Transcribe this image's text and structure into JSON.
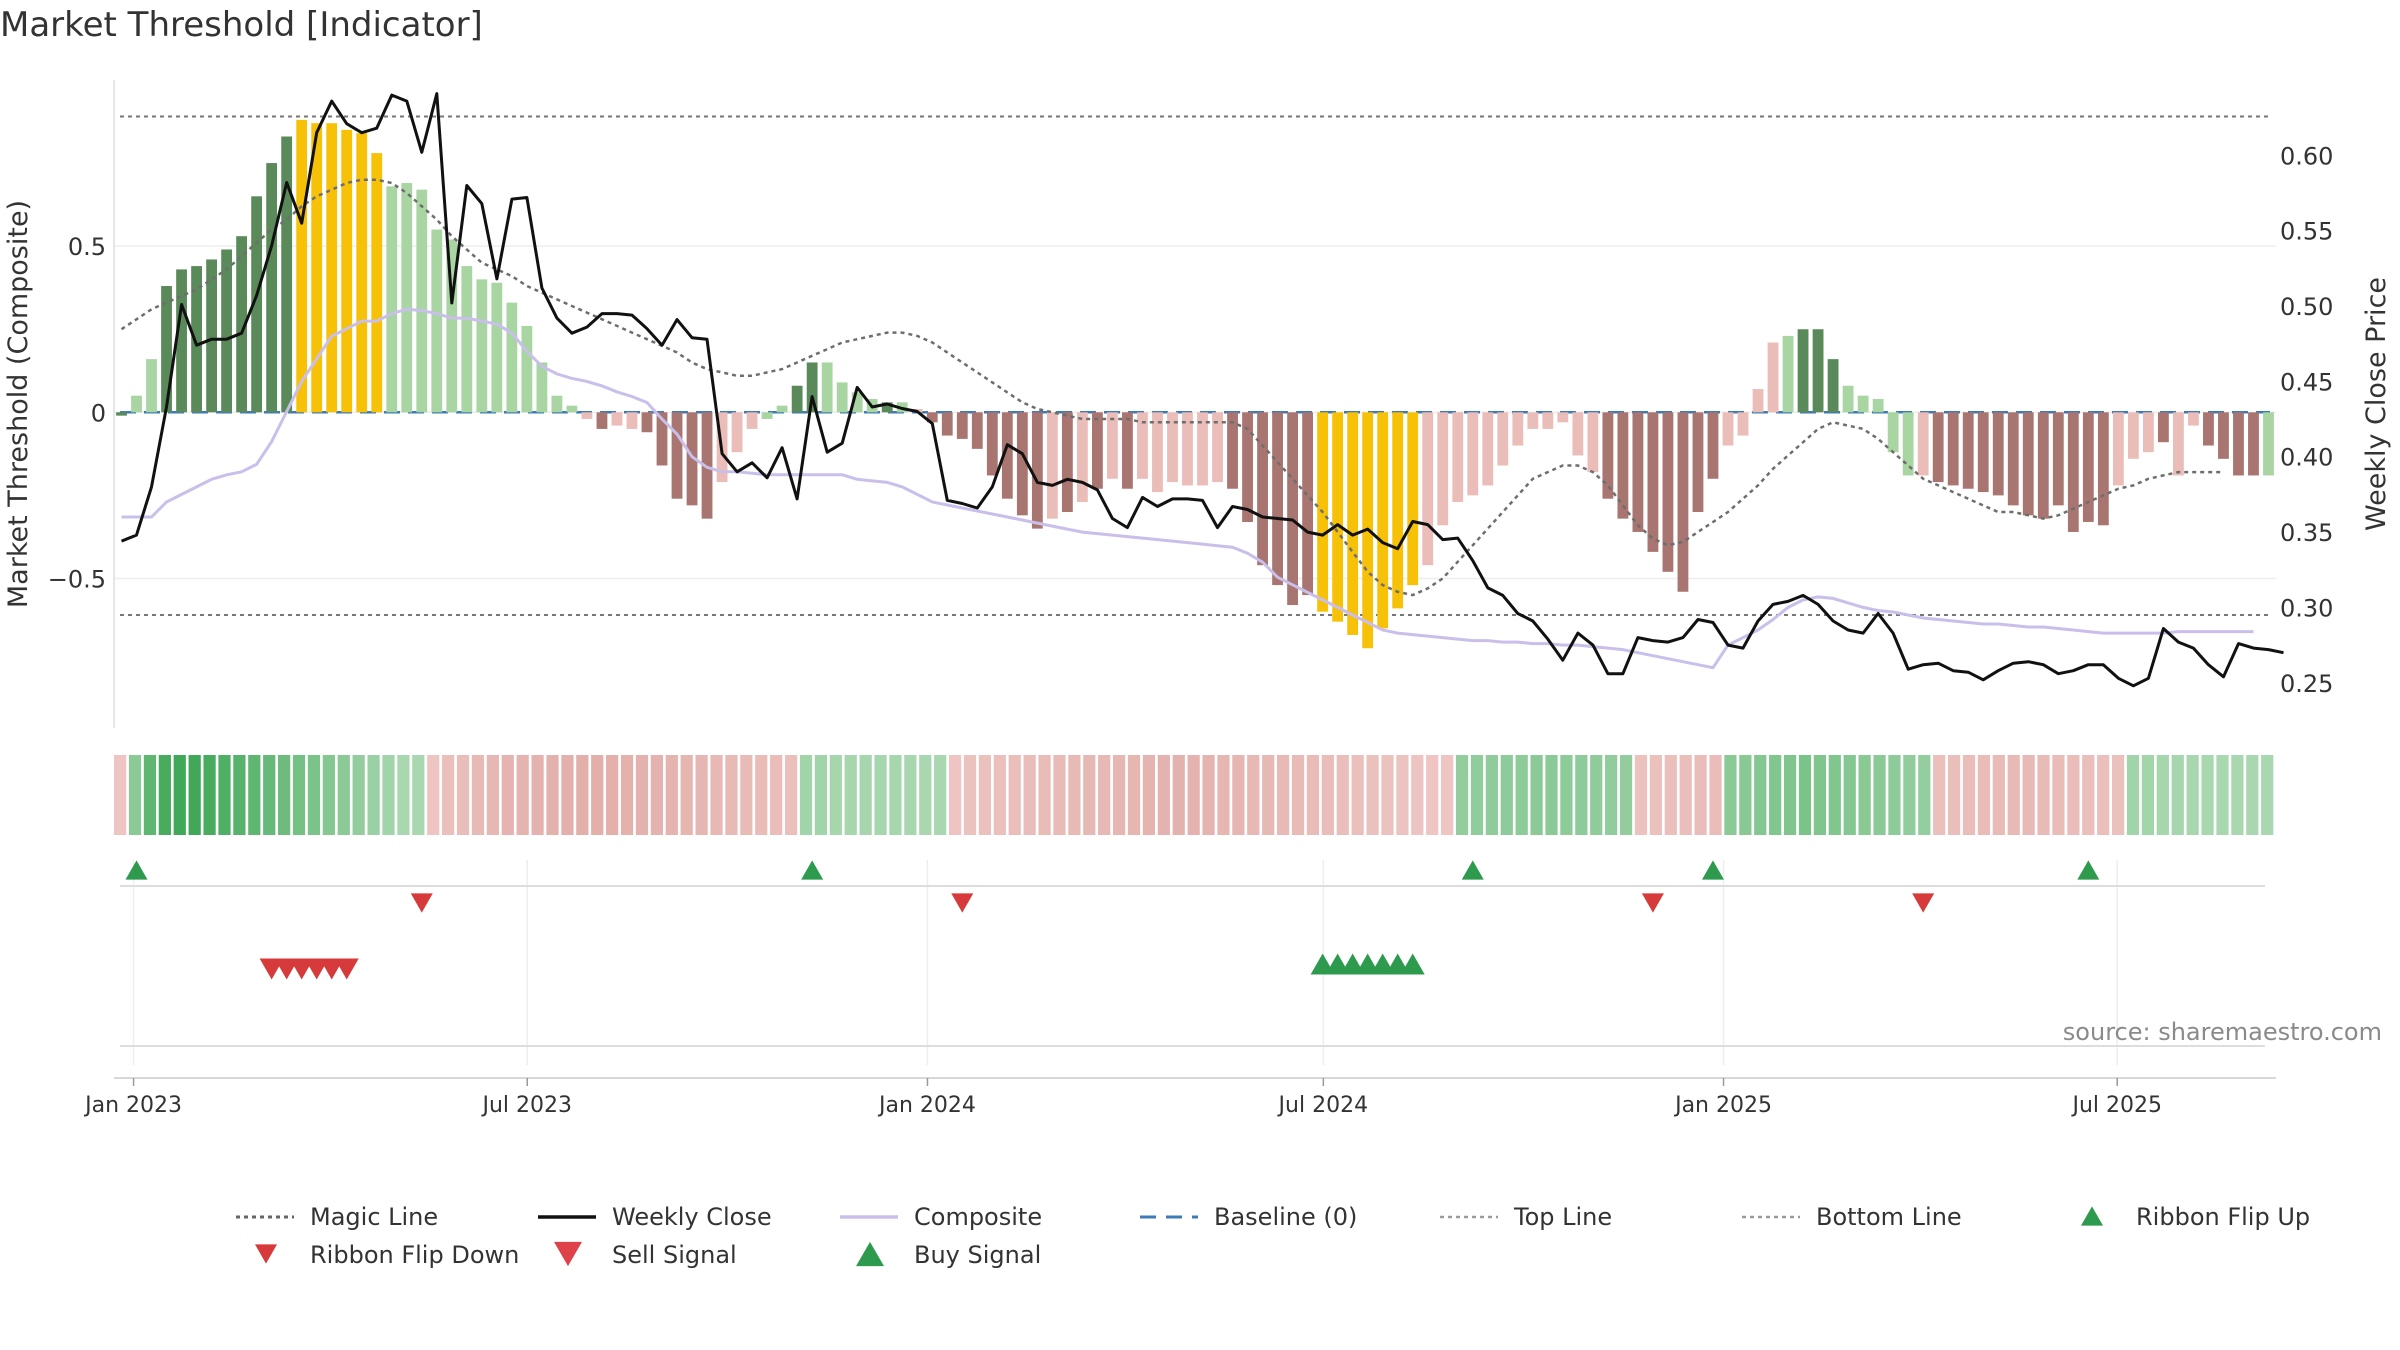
{
  "title": "Market Threshold [Indicator]",
  "source": "source: sharemaestro.com",
  "colors": {
    "green_dark": "#5a8a5a",
    "green_light": "#a8d5a2",
    "red_dark": "#a87570",
    "red_light": "#ebbdb8",
    "yellow": "#f7c108",
    "close": "#111111",
    "composite": "#c9bfea",
    "magic": "#6e6e6e",
    "baseline": "#3e7bb6",
    "buy": "#2e9a4e",
    "sell": "#d63a3a"
  },
  "chart_data": {
    "type": "bar",
    "title": "Market Threshold [Indicator]",
    "ylabel": "Market Threshold (Composite)",
    "y2label": "Weekly Close Price",
    "ylim": [
      -0.95,
      1.0
    ],
    "y2lim": [
      0.22,
      0.65
    ],
    "x_start": "2022-12-23",
    "x_end": "2025-09-12",
    "x_ticks": [
      "Jan 2023",
      "Jul 2023",
      "Jan 2024",
      "Jul 2024",
      "Jan 2025",
      "Jul 2025"
    ],
    "x_tick_dates": [
      "2023-01-01",
      "2023-07-01",
      "2024-01-01",
      "2024-07-01",
      "2025-01-01",
      "2025-07-01"
    ],
    "y_ticks": [
      "0.5",
      "0",
      "−0.5"
    ],
    "y_tick_values": [
      0.5,
      0,
      -0.5
    ],
    "y2_ticks": [
      "0.60",
      "0.55",
      "0.50",
      "0.45",
      "0.40",
      "0.35",
      "0.30",
      "0.25"
    ],
    "y2_tick_values": [
      0.6,
      0.55,
      0.5,
      0.45,
      0.4,
      0.35,
      0.3,
      0.25
    ],
    "top_line": 0.89,
    "bottom_line": -0.61,
    "composite_bars": [
      -0.01,
      0.05,
      0.16,
      0.38,
      0.43,
      0.44,
      0.46,
      0.49,
      0.53,
      0.65,
      0.75,
      0.83,
      0.88,
      0.87,
      0.87,
      0.85,
      0.84,
      0.78,
      0.68,
      0.69,
      0.67,
      0.55,
      0.52,
      0.44,
      0.4,
      0.39,
      0.33,
      0.26,
      0.15,
      0.05,
      0.02,
      -0.02,
      -0.05,
      -0.04,
      -0.05,
      -0.06,
      -0.16,
      -0.26,
      -0.28,
      -0.32,
      -0.21,
      -0.12,
      -0.05,
      -0.02,
      0.02,
      0.08,
      0.15,
      0.15,
      0.09,
      0.06,
      0.04,
      0.03,
      0.03,
      0.01,
      -0.03,
      -0.07,
      -0.08,
      -0.11,
      -0.19,
      -0.26,
      -0.31,
      -0.35,
      -0.32,
      -0.3,
      -0.27,
      -0.23,
      -0.2,
      -0.23,
      -0.2,
      -0.24,
      -0.21,
      -0.22,
      -0.22,
      -0.21,
      -0.23,
      -0.33,
      -0.46,
      -0.52,
      -0.58,
      -0.55,
      -0.6,
      -0.63,
      -0.67,
      -0.71,
      -0.65,
      -0.59,
      -0.52,
      -0.46,
      -0.34,
      -0.27,
      -0.25,
      -0.22,
      -0.16,
      -0.1,
      -0.05,
      -0.05,
      -0.03,
      -0.13,
      -0.18,
      -0.26,
      -0.32,
      -0.36,
      -0.42,
      -0.48,
      -0.54,
      -0.3,
      -0.2,
      -0.1,
      -0.07,
      0.07,
      0.21,
      0.23,
      0.25,
      0.25,
      0.16,
      0.08,
      0.05,
      0.04,
      -0.12,
      -0.19,
      -0.19,
      -0.21,
      -0.22,
      -0.23,
      -0.24,
      -0.25,
      -0.28,
      -0.31,
      -0.32,
      -0.28,
      -0.36,
      -0.33,
      -0.34,
      -0.22,
      -0.14,
      -0.12,
      -0.09,
      -0.19,
      -0.04,
      -0.1,
      -0.14,
      -0.19,
      -0.19,
      -0.19
    ],
    "weekly_close": [
      0.344,
      0.348,
      0.38,
      0.433,
      0.501,
      0.474,
      0.478,
      0.478,
      0.482,
      0.507,
      0.54,
      0.582,
      0.555,
      0.615,
      0.636,
      0.621,
      0.615,
      0.618,
      0.64,
      0.636,
      0.602,
      0.641,
      0.502,
      0.58,
      0.568,
      0.518,
      0.571,
      0.572,
      0.512,
      0.492,
      0.482,
      0.486,
      0.495,
      0.495,
      0.494,
      0.485,
      0.474,
      0.491,
      0.479,
      0.478,
      0.402,
      0.39,
      0.396,
      0.386,
      0.406,
      0.372,
      0.44,
      0.403,
      0.409,
      0.446,
      0.433,
      0.435,
      0.432,
      0.43,
      0.422,
      0.371,
      0.369,
      0.366,
      0.38,
      0.408,
      0.402,
      0.383,
      0.381,
      0.385,
      0.383,
      0.378,
      0.359,
      0.353,
      0.373,
      0.367,
      0.372,
      0.372,
      0.371,
      0.353,
      0.367,
      0.365,
      0.36,
      0.359,
      0.358,
      0.35,
      0.348,
      0.355,
      0.348,
      0.352,
      0.343,
      0.339,
      0.357,
      0.355,
      0.345,
      0.346,
      0.331,
      0.313,
      0.308,
      0.296,
      0.291,
      0.279,
      0.265,
      0.283,
      0.275,
      0.256,
      0.256,
      0.28,
      0.278,
      0.277,
      0.28,
      0.292,
      0.29,
      0.275,
      0.273,
      0.291,
      0.302,
      0.304,
      0.308,
      0.302,
      0.291,
      0.285,
      0.283,
      0.296,
      0.283,
      0.259,
      0.262,
      0.263,
      0.258,
      0.257,
      0.252,
      0.258,
      0.263,
      0.264,
      0.262,
      0.256,
      0.258,
      0.262,
      0.262,
      0.253,
      0.248,
      0.253,
      0.286,
      0.277,
      0.273,
      0.262,
      0.254,
      0.276,
      0.273,
      0.272,
      0.27
    ],
    "composite_line": [
      0.36,
      0.36,
      0.36,
      0.37,
      0.375,
      0.38,
      0.385,
      0.388,
      0.39,
      0.395,
      0.41,
      0.43,
      0.45,
      0.465,
      0.48,
      0.485,
      0.49,
      0.49,
      0.495,
      0.498,
      0.497,
      0.495,
      0.492,
      0.492,
      0.49,
      0.488,
      0.482,
      0.47,
      0.46,
      0.455,
      0.452,
      0.45,
      0.447,
      0.443,
      0.44,
      0.436,
      0.425,
      0.415,
      0.4,
      0.393,
      0.39,
      0.39,
      0.389,
      0.388,
      0.388,
      0.388,
      0.388,
      0.388,
      0.388,
      0.385,
      0.384,
      0.383,
      0.38,
      0.375,
      0.37,
      0.368,
      0.366,
      0.364,
      0.362,
      0.36,
      0.358,
      0.356,
      0.354,
      0.352,
      0.35,
      0.349,
      0.348,
      0.347,
      0.346,
      0.345,
      0.344,
      0.343,
      0.342,
      0.341,
      0.34,
      0.336,
      0.33,
      0.32,
      0.315,
      0.31,
      0.305,
      0.3,
      0.295,
      0.29,
      0.285,
      0.283,
      0.282,
      0.281,
      0.28,
      0.279,
      0.278,
      0.278,
      0.277,
      0.277,
      0.276,
      0.276,
      0.275,
      0.275,
      0.274,
      0.273,
      0.272,
      0.27,
      0.268,
      0.266,
      0.264,
      0.262,
      0.26,
      0.275,
      0.28,
      0.285,
      0.292,
      0.3,
      0.305,
      0.307,
      0.306,
      0.303,
      0.3,
      0.298,
      0.297,
      0.295,
      0.293,
      0.292,
      0.291,
      0.29,
      0.289,
      0.289,
      0.288,
      0.287,
      0.287,
      0.286,
      0.285,
      0.284,
      0.283,
      0.283,
      0.283,
      0.283,
      0.283,
      0.284,
      0.284,
      0.284,
      0.284,
      0.284,
      0.284
    ],
    "magic_line": [
      0.25,
      0.28,
      0.31,
      0.33,
      0.35,
      0.37,
      0.4,
      0.43,
      0.47,
      0.51,
      0.55,
      0.58,
      0.62,
      0.65,
      0.67,
      0.69,
      0.7,
      0.7,
      0.69,
      0.66,
      0.62,
      0.58,
      0.53,
      0.49,
      0.45,
      0.43,
      0.41,
      0.38,
      0.36,
      0.34,
      0.32,
      0.3,
      0.28,
      0.26,
      0.24,
      0.22,
      0.2,
      0.18,
      0.15,
      0.13,
      0.12,
      0.11,
      0.11,
      0.12,
      0.13,
      0.15,
      0.17,
      0.19,
      0.21,
      0.22,
      0.23,
      0.24,
      0.24,
      0.23,
      0.21,
      0.18,
      0.15,
      0.12,
      0.09,
      0.06,
      0.03,
      0.01,
      0.0,
      -0.01,
      -0.02,
      -0.02,
      -0.02,
      -0.02,
      -0.03,
      -0.03,
      -0.03,
      -0.03,
      -0.03,
      -0.03,
      -0.03,
      -0.05,
      -0.1,
      -0.15,
      -0.2,
      -0.25,
      -0.3,
      -0.36,
      -0.42,
      -0.48,
      -0.52,
      -0.54,
      -0.55,
      -0.53,
      -0.5,
      -0.45,
      -0.4,
      -0.35,
      -0.3,
      -0.25,
      -0.2,
      -0.18,
      -0.16,
      -0.16,
      -0.18,
      -0.22,
      -0.28,
      -0.34,
      -0.38,
      -0.4,
      -0.39,
      -0.36,
      -0.33,
      -0.3,
      -0.26,
      -0.22,
      -0.17,
      -0.13,
      -0.09,
      -0.05,
      -0.03,
      -0.04,
      -0.05,
      -0.08,
      -0.12,
      -0.16,
      -0.2,
      -0.22,
      -0.24,
      -0.26,
      -0.28,
      -0.3,
      -0.3,
      -0.31,
      -0.32,
      -0.31,
      -0.29,
      -0.27,
      -0.25,
      -0.23,
      -0.22,
      -0.2,
      -0.19,
      -0.18,
      -0.18,
      -0.18,
      -0.18
    ],
    "bar_states": [
      "gd",
      "gl",
      "gl",
      "gd",
      "gd",
      "gd",
      "gd",
      "gd",
      "gd",
      "gd",
      "gd",
      "gd",
      "y",
      "y",
      "y",
      "y",
      "y",
      "y",
      "gl",
      "gl",
      "gl",
      "gl",
      "gl",
      "gl",
      "gl",
      "gl",
      "gl",
      "gl",
      "gl",
      "gl",
      "gl",
      "rl",
      "rd",
      "rl",
      "rl",
      "rd",
      "rd",
      "rd",
      "rd",
      "rd",
      "rl",
      "rl",
      "rl",
      "gl",
      "gl",
      "gd",
      "gd",
      "gl",
      "gl",
      "gl",
      "gl",
      "gd",
      "gl",
      "rl",
      "rd",
      "rd",
      "rd",
      "rd",
      "rd",
      "rd",
      "rd",
      "rd",
      "rl",
      "rd",
      "rl",
      "rd",
      "rl",
      "rd",
      "rl",
      "rl",
      "rl",
      "rl",
      "rl",
      "rl",
      "rd",
      "rd",
      "rd",
      "rd",
      "rd",
      "rd",
      "y",
      "y",
      "y",
      "y",
      "y",
      "y",
      "y",
      "rl",
      "rl",
      "rl",
      "rl",
      "rl",
      "rl",
      "rl",
      "rl",
      "rl",
      "rl",
      "rl",
      "rl",
      "rd",
      "rd",
      "rd",
      "rd",
      "rd",
      "rd",
      "rd",
      "rd",
      "rl",
      "rl",
      "rl",
      "rl",
      "gl",
      "gd",
      "gd",
      "gd",
      "gl",
      "gl",
      "gl",
      "gl",
      "gl",
      "rl",
      "rd",
      "rd",
      "rd",
      "rd",
      "rd",
      "rd",
      "rd",
      "rd",
      "rd",
      "rd",
      "rd",
      "rd",
      "rl",
      "rl",
      "rl",
      "rd",
      "rl",
      "rl",
      "rd",
      "rd",
      "rd",
      "rd"
    ],
    "ribbon": [
      -0.3,
      0.5,
      0.8,
      0.95,
      1.0,
      1.0,
      0.95,
      0.9,
      0.85,
      0.8,
      0.75,
      0.7,
      0.65,
      0.6,
      0.55,
      0.5,
      0.45,
      0.4,
      0.35,
      0.3,
      0.3,
      -0.3,
      -0.4,
      -0.45,
      -0.5,
      -0.55,
      -0.6,
      -0.6,
      -0.62,
      -0.65,
      -0.67,
      -0.7,
      -0.7,
      -0.68,
      -0.66,
      -0.64,
      -0.62,
      -0.6,
      -0.58,
      -0.56,
      -0.54,
      -0.5,
      -0.48,
      -0.46,
      -0.44,
      -0.4,
      0.35,
      0.35,
      0.33,
      0.33,
      0.32,
      0.32,
      0.32,
      0.31,
      0.3,
      0.3,
      -0.3,
      -0.35,
      -0.38,
      -0.4,
      -0.42,
      -0.44,
      -0.46,
      -0.48,
      -0.5,
      -0.52,
      -0.54,
      -0.56,
      -0.58,
      -0.6,
      -0.62,
      -0.64,
      -0.62,
      -0.6,
      -0.58,
      -0.56,
      -0.54,
      -0.52,
      -0.5,
      -0.48,
      -0.46,
      -0.44,
      -0.42,
      -0.4,
      -0.38,
      -0.36,
      -0.34,
      -0.32,
      -0.3,
      -0.3,
      0.45,
      0.46,
      0.47,
      0.48,
      0.49,
      0.5,
      0.5,
      0.49,
      0.48,
      0.47,
      0.46,
      0.45,
      -0.35,
      -0.38,
      -0.4,
      -0.42,
      -0.44,
      -0.44,
      0.5,
      0.52,
      0.54,
      0.56,
      0.58,
      0.6,
      0.58,
      0.56,
      0.54,
      0.52,
      0.5,
      0.48,
      0.46,
      0.44,
      -0.4,
      -0.42,
      -0.44,
      -0.46,
      -0.48,
      -0.5,
      -0.5,
      -0.48,
      -0.46,
      -0.44,
      -0.42,
      -0.4,
      -0.38,
      0.35,
      0.34,
      0.33,
      0.32,
      0.31,
      0.3,
      0.3,
      0.3,
      0.3,
      0.3
    ],
    "ribbon_flip_up": [
      1,
      46,
      90,
      106,
      131
    ],
    "ribbon_flip_down": [
      20,
      56,
      102,
      120
    ],
    "sell_signals": [
      10,
      11,
      12,
      13,
      14,
      15
    ],
    "buy_signals": [
      80,
      81,
      82,
      83,
      84,
      85,
      86
    ],
    "legend": [
      {
        "label": "Magic Line",
        "style": "dotted-line"
      },
      {
        "label": "Weekly Close",
        "style": "solid-black"
      },
      {
        "label": "Composite",
        "style": "solid-lavender"
      },
      {
        "label": "Baseline (0)",
        "style": "dashed-blue"
      },
      {
        "label": "Top Line",
        "style": "dotted-grey"
      },
      {
        "label": "Bottom Line",
        "style": "dotted-grey"
      },
      {
        "label": "Ribbon Flip Up",
        "style": "triangle-up-green"
      },
      {
        "label": "Ribbon Flip Down",
        "style": "triangle-down-red"
      },
      {
        "label": "Sell Signal",
        "style": "triangle-down-red-large"
      },
      {
        "label": "Buy Signal",
        "style": "triangle-up-green-large"
      }
    ]
  }
}
